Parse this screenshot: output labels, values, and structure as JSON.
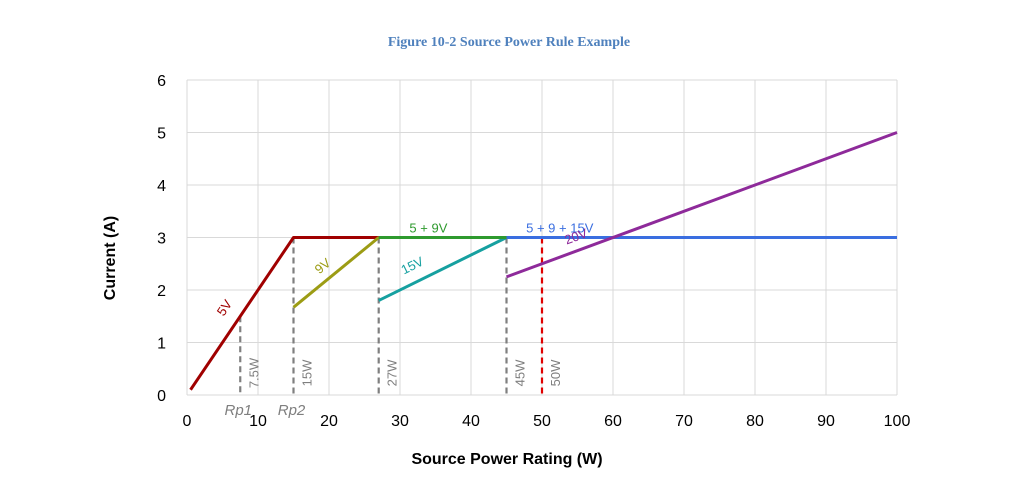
{
  "chart_data": {
    "type": "line",
    "title": "Figure 10-2 Source Power Rule Example",
    "xlabel": "Source Power Rating (W)",
    "ylabel": "Current (A)",
    "xlim": [
      0,
      100
    ],
    "ylim": [
      0,
      6
    ],
    "xticks": [
      0,
      10,
      20,
      30,
      40,
      50,
      60,
      70,
      80,
      90,
      100
    ],
    "yticks": [
      0,
      1,
      2,
      3,
      4,
      5,
      6
    ],
    "grid": true,
    "series": [
      {
        "name": "5V",
        "color": "#a00000",
        "points": [
          [
            0.5,
            0.1
          ],
          [
            15,
            3
          ],
          [
            27,
            3
          ]
        ]
      },
      {
        "name": "9V",
        "color": "#9c9c14",
        "points": [
          [
            15,
            1.67
          ],
          [
            27,
            3
          ]
        ]
      },
      {
        "name": "15V",
        "color": "#16a0a0",
        "points": [
          [
            27,
            1.8
          ],
          [
            45,
            3
          ]
        ]
      },
      {
        "name": "5 + 9V",
        "color": "#2e9a2e",
        "points": [
          [
            27,
            3
          ],
          [
            45,
            3
          ]
        ]
      },
      {
        "name": "5 + 9 + 15V",
        "color": "#3a6ee0",
        "points": [
          [
            45,
            3
          ],
          [
            100,
            3
          ]
        ]
      },
      {
        "name": "20V",
        "color": "#8e2a9a",
        "points": [
          [
            45,
            2.25
          ],
          [
            100,
            5
          ]
        ]
      }
    ],
    "markers": [
      {
        "label": "7.5W",
        "x": 7.5,
        "y": 1.5,
        "color": "#7f7f7f",
        "dashed": true
      },
      {
        "label": "15W",
        "x": 15,
        "y": 3,
        "color": "#7f7f7f",
        "dashed": true
      },
      {
        "label": "27W",
        "x": 27,
        "y": 3,
        "color": "#7f7f7f",
        "dashed": true
      },
      {
        "label": "45W",
        "x": 45,
        "y": 3,
        "color": "#7f7f7f",
        "dashed": true
      },
      {
        "label": "50W",
        "x": 50,
        "y": 3,
        "color": "#e00000",
        "dashed": true
      }
    ],
    "annotations": [
      {
        "text": "Rp1",
        "x": 7.5,
        "y": 0
      },
      {
        "text": "Rp2",
        "x": 15,
        "y": 0
      }
    ]
  }
}
